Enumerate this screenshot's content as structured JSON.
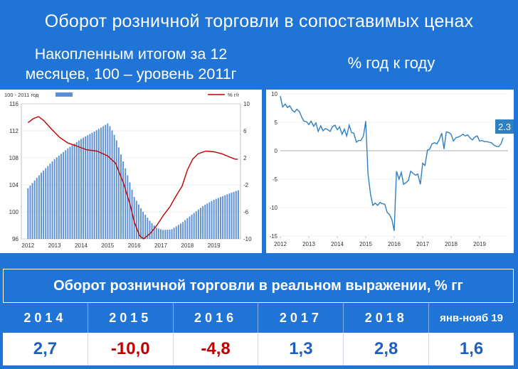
{
  "title": "Оборот розничной торговли в сопоставимых ценах",
  "left_subtitle": "Накопленным итогом за 12 месяцев, 100 – уровень 2011г",
  "right_subtitle": "% год к году",
  "table": {
    "title": "Оборот розничной торговли в реальном выражении, % гг",
    "columns": [
      "2014",
      "2015",
      "2016",
      "2017",
      "2018",
      "янв-нояб 19"
    ],
    "values": [
      "2,7",
      "-10,0",
      "-4,8",
      "1,3",
      "2,8",
      "1,6"
    ],
    "value_colors": [
      "#1f5fbf",
      "#c00000",
      "#c00000",
      "#1f5fbf",
      "#1f5fbf",
      "#1f5fbf"
    ]
  },
  "chart_data": [
    {
      "type": "bar",
      "legend_left": "100 - 2011 год",
      "legend_right": "% г/г",
      "x_ticks": [
        "2012",
        "2013",
        "2014",
        "2015",
        "2016",
        "2017",
        "2018",
        "2019"
      ],
      "ylim_left": [
        96,
        116
      ],
      "yticks_left": [
        "116",
        "112",
        "108",
        "104",
        "100",
        "96"
      ],
      "ylim_right": [
        -10,
        10
      ],
      "yticks_right": [
        "10",
        "6",
        "2",
        "-2",
        "-6",
        "-10"
      ],
      "bar_color": "#5b8fd6",
      "line_color": "#c00000",
      "bar_points": [
        [
          2012.0,
          103.5
        ],
        [
          2012.5,
          105.8
        ],
        [
          2013.0,
          107.8
        ],
        [
          2013.5,
          109.4
        ],
        [
          2014.0,
          110.8
        ],
        [
          2014.5,
          111.9
        ],
        [
          2014.8,
          112.6
        ],
        [
          2015.0,
          113.1
        ],
        [
          2015.1,
          112.6
        ],
        [
          2015.3,
          111.0
        ],
        [
          2015.5,
          108.5
        ],
        [
          2015.8,
          104.8
        ],
        [
          2016.0,
          102.2
        ],
        [
          2016.3,
          100.2
        ],
        [
          2016.6,
          98.6
        ],
        [
          2016.85,
          97.6
        ],
        [
          2017.1,
          97.3
        ],
        [
          2017.4,
          97.4
        ],
        [
          2017.8,
          98.4
        ],
        [
          2018.2,
          99.7
        ],
        [
          2018.6,
          100.9
        ],
        [
          2019.0,
          101.8
        ],
        [
          2019.5,
          102.6
        ],
        [
          2019.9,
          103.2
        ]
      ],
      "line_points": [
        [
          2012.0,
          7.2
        ],
        [
          2012.2,
          7.8
        ],
        [
          2012.4,
          8.1
        ],
        [
          2012.6,
          7.5
        ],
        [
          2012.9,
          6.2
        ],
        [
          2013.2,
          5.0
        ],
        [
          2013.5,
          4.2
        ],
        [
          2013.8,
          3.8
        ],
        [
          2014.2,
          3.2
        ],
        [
          2014.6,
          3.0
        ],
        [
          2015.0,
          2.3
        ],
        [
          2015.3,
          1.2
        ],
        [
          2015.6,
          -1.8
        ],
        [
          2015.85,
          -5.0
        ],
        [
          2016.0,
          -7.5
        ],
        [
          2016.2,
          -9.5
        ],
        [
          2016.35,
          -10.0
        ],
        [
          2016.6,
          -9.2
        ],
        [
          2016.85,
          -8.0
        ],
        [
          2017.1,
          -6.5
        ],
        [
          2017.35,
          -5.2
        ],
        [
          2017.55,
          -3.8
        ],
        [
          2017.8,
          -2.2
        ],
        [
          2018.0,
          0.2
        ],
        [
          2018.2,
          1.8
        ],
        [
          2018.4,
          2.6
        ],
        [
          2018.7,
          3.0
        ],
        [
          2019.0,
          2.9
        ],
        [
          2019.3,
          2.6
        ],
        [
          2019.6,
          2.1
        ],
        [
          2019.8,
          1.8
        ],
        [
          2019.9,
          1.8
        ]
      ]
    },
    {
      "type": "line",
      "x_ticks": [
        "2012",
        "2013",
        "2014",
        "2015",
        "2016",
        "2017",
        "2018",
        "2019"
      ],
      "ylim": [
        -15,
        10
      ],
      "yticks": [
        "10",
        "5",
        "0",
        "-5",
        "-10",
        "-15"
      ],
      "line_color": "#2f7fc1",
      "end_label": "2.3",
      "points": [
        [
          2012.0,
          9.6
        ],
        [
          2012.08,
          7.7
        ],
        [
          2012.17,
          8.2
        ],
        [
          2012.25,
          7.6
        ],
        [
          2012.33,
          7.9
        ],
        [
          2012.42,
          7.1
        ],
        [
          2012.5,
          6.8
        ],
        [
          2012.58,
          7.3
        ],
        [
          2012.67,
          6.9
        ],
        [
          2012.75,
          5.9
        ],
        [
          2012.83,
          5.2
        ],
        [
          2012.92,
          5.1
        ],
        [
          2013.0,
          4.6
        ],
        [
          2013.08,
          5.2
        ],
        [
          2013.17,
          4.3
        ],
        [
          2013.25,
          4.9
        ],
        [
          2013.33,
          3.4
        ],
        [
          2013.42,
          4.4
        ],
        [
          2013.5,
          3.5
        ],
        [
          2013.58,
          3.9
        ],
        [
          2013.67,
          3.7
        ],
        [
          2013.75,
          3.4
        ],
        [
          2013.83,
          4.2
        ],
        [
          2013.92,
          4.5
        ],
        [
          2014.0,
          3.7
        ],
        [
          2014.08,
          4.2
        ],
        [
          2014.17,
          2.9
        ],
        [
          2014.25,
          3.8
        ],
        [
          2014.33,
          2.6
        ],
        [
          2014.42,
          4.5
        ],
        [
          2014.5,
          3.2
        ],
        [
          2014.58,
          3.1
        ],
        [
          2014.67,
          1.5
        ],
        [
          2014.75,
          1.8
        ],
        [
          2014.83,
          1.8
        ],
        [
          2014.92,
          2.6
        ],
        [
          2015.0,
          5.2
        ],
        [
          2015.08,
          -4.1
        ],
        [
          2015.17,
          -7.7
        ],
        [
          2015.25,
          -9.6
        ],
        [
          2015.33,
          -9.2
        ],
        [
          2015.42,
          -9.6
        ],
        [
          2015.5,
          -9.1
        ],
        [
          2015.58,
          -9.3
        ],
        [
          2015.67,
          -9.4
        ],
        [
          2015.75,
          -10.8
        ],
        [
          2015.83,
          -11.2
        ],
        [
          2015.92,
          -12.1
        ],
        [
          2016.0,
          -14.1
        ],
        [
          2016.08,
          -3.6
        ],
        [
          2016.17,
          -5.0
        ],
        [
          2016.25,
          -3.8
        ],
        [
          2016.33,
          -5.9
        ],
        [
          2016.42,
          -5.6
        ],
        [
          2016.5,
          -5.2
        ],
        [
          2016.58,
          -3.6
        ],
        [
          2016.67,
          -4.0
        ],
        [
          2016.75,
          -4.3
        ],
        [
          2016.83,
          -4.1
        ],
        [
          2016.92,
          -5.9
        ],
        [
          2017.0,
          -2.2
        ],
        [
          2017.08,
          -2.6
        ],
        [
          2017.17,
          0.1
        ],
        [
          2017.25,
          0.3
        ],
        [
          2017.33,
          1.2
        ],
        [
          2017.42,
          1.4
        ],
        [
          2017.5,
          1.2
        ],
        [
          2017.58,
          1.9
        ],
        [
          2017.67,
          3.1
        ],
        [
          2017.75,
          0.3
        ],
        [
          2017.83,
          3.3
        ],
        [
          2017.92,
          3.2
        ],
        [
          2018.0,
          2.9
        ],
        [
          2018.08,
          1.7
        ],
        [
          2018.17,
          2.3
        ],
        [
          2018.25,
          2.4
        ],
        [
          2018.33,
          2.6
        ],
        [
          2018.42,
          2.9
        ],
        [
          2018.5,
          2.6
        ],
        [
          2018.58,
          2.8
        ],
        [
          2018.67,
          2.2
        ],
        [
          2018.75,
          1.9
        ],
        [
          2018.83,
          2.4
        ],
        [
          2018.92,
          2.6
        ],
        [
          2019.0,
          1.7
        ],
        [
          2019.08,
          1.8
        ],
        [
          2019.17,
          1.6
        ],
        [
          2019.25,
          1.6
        ],
        [
          2019.33,
          1.5
        ],
        [
          2019.42,
          1.4
        ],
        [
          2019.5,
          1.0
        ],
        [
          2019.58,
          0.8
        ],
        [
          2019.67,
          0.7
        ],
        [
          2019.75,
          1.2
        ],
        [
          2019.83,
          2.3
        ]
      ]
    }
  ]
}
